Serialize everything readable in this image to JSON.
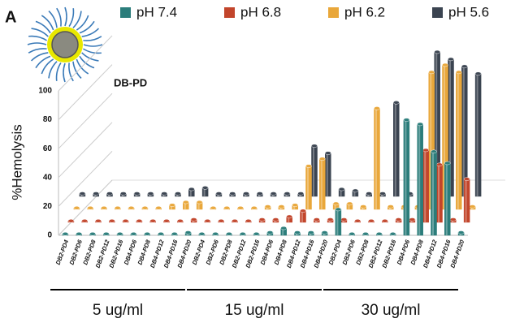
{
  "chart_data": {
    "type": "bar3d",
    "panel_label": "A",
    "subtitle": "DB-PD",
    "y_label": "%Hemolysis",
    "categories": [
      "DB2-PD4",
      "DB2-PD6",
      "DB2-PD8",
      "DB2-PD12",
      "DB2-PD16",
      "DB4-PD6",
      "DB4-PD8",
      "DB4-PD12",
      "DB4-PD16",
      "DB4-PD20",
      "DB2-PD4",
      "DB2-PD6",
      "DB2-PD8",
      "DB2-PD12",
      "DB2-PD16",
      "DB4-PD6",
      "DB4-PD8",
      "DB4-PD12",
      "DB4-PD16",
      "DB4-PD20",
      "DB2-PD4",
      "DB2-PD6",
      "DB2-PD8",
      "DB2-PD12",
      "DB2-PD16",
      "DB4-PD6",
      "DB4-PD8",
      "DB4-PD12",
      "DB4-PD16",
      "DB4-PD20"
    ],
    "groups": [
      "5 ug/ml",
      "15 ug/ml",
      "30 ug/ml"
    ],
    "series": [
      {
        "name": "pH 7.4",
        "color": "#2b7d7b",
        "values": [
          1,
          1,
          1,
          1,
          1,
          1,
          1,
          1,
          1,
          2,
          1,
          1,
          1,
          1,
          1,
          2,
          5,
          2,
          2,
          2,
          18,
          1,
          1,
          1,
          1,
          80,
          77,
          58,
          50,
          2
        ]
      },
      {
        "name": "pH 6.8",
        "color": "#c2452b",
        "values": [
          1,
          1,
          1,
          1,
          1,
          1,
          1,
          1,
          1,
          2,
          1,
          1,
          1,
          1,
          2,
          2,
          4,
          8,
          2,
          2,
          2,
          1,
          1,
          1,
          2,
          2,
          50,
          40,
          2,
          30
        ]
      },
      {
        "name": "pH 6.2",
        "color": "#e9a73a",
        "values": [
          1,
          1,
          1,
          1,
          1,
          1,
          1,
          3,
          5,
          5,
          1,
          1,
          1,
          1,
          2,
          2,
          3,
          30,
          35,
          4,
          4,
          2,
          70,
          2,
          2,
          2,
          95,
          100,
          95,
          2
        ]
      },
      {
        "name": "pH 5.6",
        "color": "#3b4451",
        "values": [
          2,
          2,
          2,
          2,
          2,
          2,
          2,
          2,
          5,
          6,
          2,
          2,
          2,
          2,
          2,
          2,
          2,
          35,
          30,
          5,
          4,
          2,
          2,
          65,
          2,
          2,
          100,
          95,
          90,
          85
        ]
      }
    ],
    "ylim": [
      0,
      100
    ],
    "yticks": [
      0,
      20,
      40,
      60,
      80,
      100
    ]
  }
}
